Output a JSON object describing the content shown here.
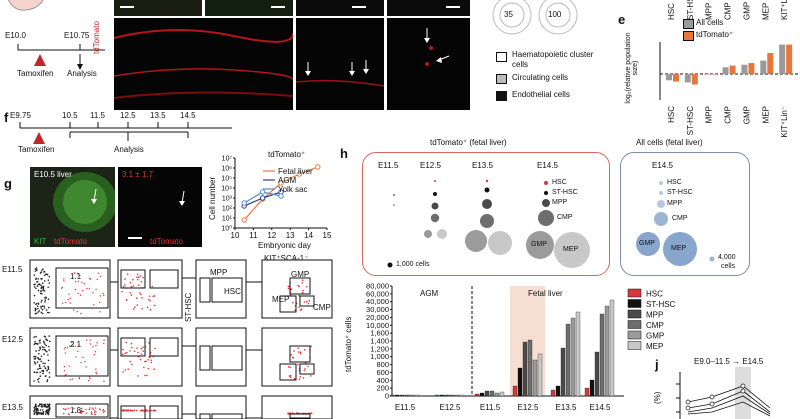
{
  "panels": {
    "d": {
      "timeline_ticks": [
        "E10.0",
        "E10.75"
      ],
      "event_labels": [
        "Tamoxifen",
        "Analysis"
      ],
      "channel_label": "tdTomato",
      "donut_values": [
        "35",
        "100"
      ],
      "legend": [
        "Haematopoietic cluster cells",
        "Circulating cells",
        "Endothelial cells"
      ]
    },
    "e": {
      "letter": "e",
      "legend": [
        "All cells",
        "tdTomato⁺"
      ],
      "ylabel": "log₂(relative population size)",
      "categories": [
        "HSC",
        "ST-HSC",
        "MPP",
        "CMP",
        "GMP",
        "MEP",
        "KIT⁺Lin⁻"
      ],
      "colors": {
        "all": "#9a9a9a",
        "td": "#e8763a"
      }
    },
    "f": {
      "letter": "f",
      "timeline_ticks": [
        "E9.75",
        "10.5",
        "11.5",
        "12.5",
        "13.5",
        "14.5"
      ],
      "event_labels": [
        "Tamoxifen",
        "Analysis"
      ]
    },
    "g": {
      "letter": "g",
      "image_label": "E10.5 liver",
      "channel_labels": [
        "KIT",
        "tdTomato"
      ],
      "value_label": "3.1 ± 1.7",
      "channel_label_2": "tdTomato",
      "chart_title": "tdTomato⁺",
      "legend": [
        "Fetal liver",
        "AGM",
        "Yolk sac"
      ],
      "ylabel": "Cell number",
      "xlabel": "Embryonic day",
      "yticks": [
        "10⁷",
        "10⁶",
        "10⁵",
        "10⁴",
        "10³",
        "10²",
        "10¹",
        "10⁰"
      ],
      "xticks": [
        "10",
        "11",
        "12",
        "13",
        "14",
        "15"
      ]
    },
    "flow": {
      "row_labels": [
        "E11.5",
        "E12.5",
        "E13.5"
      ],
      "percentages": [
        "1.1",
        "2.1",
        "1.8"
      ],
      "gate_labels": [
        "MPP",
        "HSC",
        "ST-HSC",
        "GMP",
        "MEP",
        "CMP"
      ],
      "column_title": "KIT⁺SCA-1⁻"
    },
    "h": {
      "letter": "h",
      "title_left": "tdTomato⁺ (fetal liver)",
      "title_right": "All cells (fetal liver)",
      "columns": [
        "E11.5",
        "E12.5",
        "E13.5",
        "E14.5"
      ],
      "right_column": "E14.5",
      "legend_left": [
        "HSC",
        "ST-HSC",
        "MPP",
        "CMP",
        "GMP",
        "MEP"
      ],
      "legend_right": [
        "HSC",
        "ST-HSC",
        "MPP",
        "CMP",
        "GMP",
        "MEP"
      ],
      "scale_left": "1,000 cells",
      "scale_right_value": "4,000",
      "scale_right_unit": "cells"
    },
    "i": {
      "ylabel": "tdTomato⁺ cells",
      "yticks": [
        "80,000",
        "60,000",
        "40,000",
        "30,000",
        "20,000",
        "10,000",
        "1,600",
        "1,400",
        "1,200",
        "1,000",
        "800",
        "600",
        "400",
        "200",
        "0"
      ],
      "region_labels": [
        "AGM",
        "Fetal liver"
      ],
      "xticks": [
        "E11.5",
        "E12.5",
        "E11.5",
        "E12.5",
        "E13.5",
        "E14.5"
      ],
      "legend": [
        "HSC",
        "ST-HSC",
        "MPP",
        "CMP",
        "GMP",
        "MEP"
      ],
      "colors": [
        "#d8373f",
        "#111111",
        "#4a4a4a",
        "#6e6e6e",
        "#9b9b9b",
        "#c8c8c8"
      ]
    },
    "j": {
      "letter": "j",
      "title": "E9.0–11.5 → E14.5",
      "ylabel": "(%)"
    }
  },
  "chart_data": [
    {
      "type": "bar",
      "panel": "e",
      "categories": [
        "HSC",
        "ST-HSC",
        "MPP",
        "CMP",
        "GMP",
        "MEP",
        "KIT⁺Lin⁻"
      ],
      "series": [
        {
          "name": "All cells",
          "values": [
            -1.5,
            -2.0,
            0,
            1.6,
            2.2,
            3.2,
            7.0
          ]
        },
        {
          "name": "tdTomato⁺",
          "values": [
            -1.8,
            -2.5,
            0,
            2.0,
            2.6,
            5.0,
            7.0
          ]
        }
      ],
      "ylabel": "log₂(relative population size)"
    },
    {
      "type": "line",
      "panel": "g",
      "title": "tdTomato⁺",
      "xlabel": "Embryonic day",
      "ylabel": "Cell number",
      "x": [
        10.5,
        11.5,
        12.5,
        13.5,
        14.5
      ],
      "series": [
        {
          "name": "Fetal liver",
          "log10_values": [
            0.8,
            2.9,
            4.5,
            5.4,
            6.1
          ]
        },
        {
          "name": "AGM",
          "log10_values": [
            2.2,
            3.0,
            3.6,
            null,
            null
          ]
        },
        {
          "name": "Yolk sac",
          "log10_values": [
            2.5,
            3.6,
            3.2,
            null,
            null
          ]
        }
      ]
    }
  ]
}
